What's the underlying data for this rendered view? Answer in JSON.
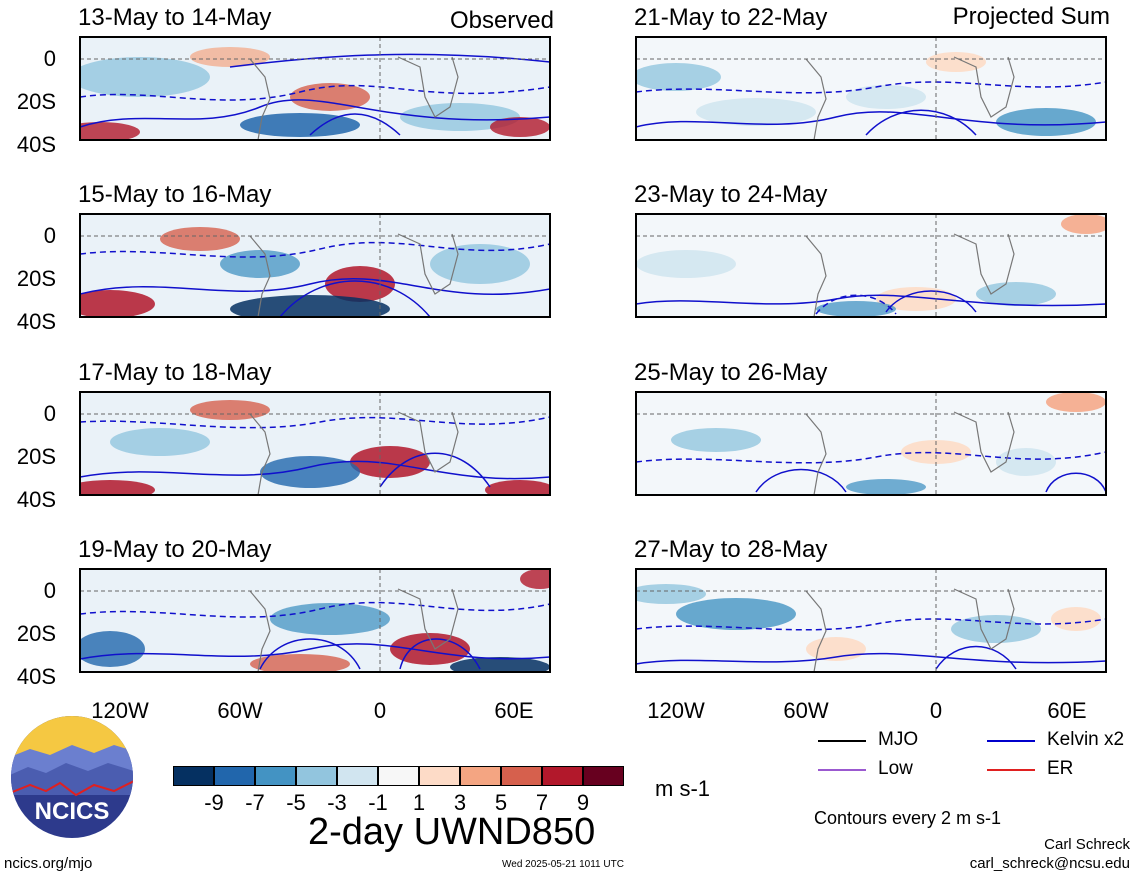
{
  "left_label": "Observed",
  "right_label": "Projected Sum",
  "panels_left": [
    {
      "title": "13-May to 14-May"
    },
    {
      "title": "15-May to 16-May"
    },
    {
      "title": "17-May to 18-May"
    },
    {
      "title": "19-May to 20-May"
    }
  ],
  "panels_right": [
    {
      "title": "21-May to 22-May"
    },
    {
      "title": "23-May to 24-May"
    },
    {
      "title": "25-May to 26-May"
    },
    {
      "title": "27-May to 28-May"
    }
  ],
  "y_ticks": [
    "0",
    "20S",
    "40S"
  ],
  "x_ticks": [
    "120W",
    "60W",
    "0",
    "60E"
  ],
  "colorbar": {
    "colors": [
      "#053061",
      "#2166ac",
      "#4393c3",
      "#92c5de",
      "#d1e5f0",
      "#f7f7f7",
      "#fddbc7",
      "#f4a582",
      "#d6604d",
      "#b2182b",
      "#67001f"
    ],
    "labels": [
      "-9",
      "-7",
      "-5",
      "-3",
      "-1",
      "1",
      "3",
      "5",
      "7",
      "9"
    ],
    "units": "m s-1"
  },
  "variable_title": "2-day UWND850",
  "legend": {
    "items": [
      {
        "label": "MJO",
        "color": "#000000"
      },
      {
        "label": "Kelvin x2",
        "color": "#0000cc"
      },
      {
        "label": "Low",
        "color": "#9b59d0"
      },
      {
        "label": "ER",
        "color": "#e02020"
      }
    ],
    "note": "Contours every 2 m s-1"
  },
  "logo_text": "NCICS",
  "footer_left": "ncics.org/mjo",
  "timestamp": "Wed 2025-05-21 1011 UTC",
  "credit_name": "Carl Schreck",
  "credit_email": "carl_schreck@ncsu.edu"
}
